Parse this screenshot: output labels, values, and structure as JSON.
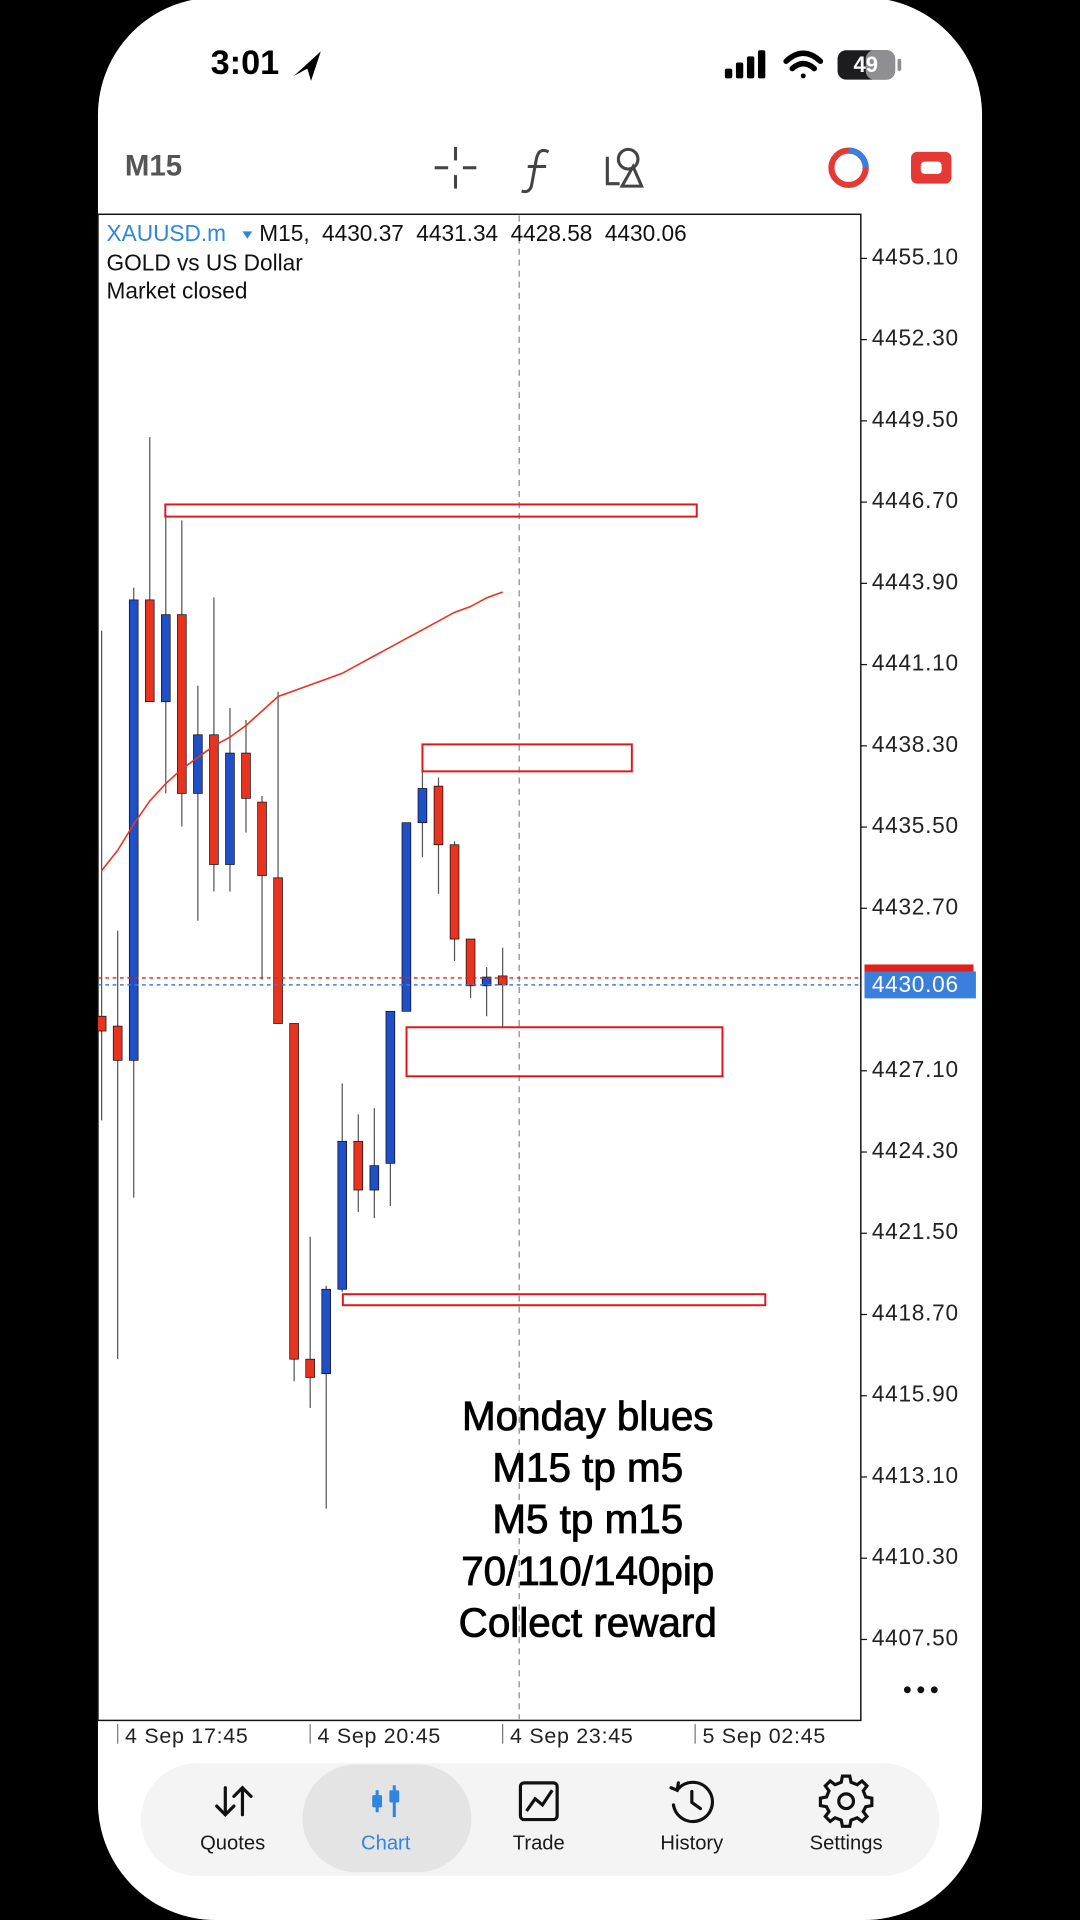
{
  "status_bar": {
    "time": "3:01",
    "battery": "49"
  },
  "toolbar": {
    "timeframe": "M15"
  },
  "chart_data": {
    "type": "candlestick",
    "symbol": "XAUUSD.m",
    "period_label": "M15,",
    "description": "GOLD vs US Dollar",
    "status": "Market closed",
    "up_color": "#1f50c8",
    "down_color": "#e8341f",
    "candles": [
      {
        "open": 4428.98,
        "high": 4442.27,
        "low": 4425.39,
        "close": 4428.47
      },
      {
        "open": 4428.64,
        "high": 4431.93,
        "low": 4417.16,
        "close": 4427.46
      },
      {
        "open": 4427.46,
        "high": 4443.75,
        "low": 4422.73,
        "close": 4443.33
      },
      {
        "open": 4443.33,
        "high": 4448.94,
        "low": 4439.82,
        "close": 4439.82
      },
      {
        "open": 4439.82,
        "high": 4446.28,
        "low": 4436.66,
        "close": 4442.82
      },
      {
        "open": 4442.82,
        "high": 4446.07,
        "low": 4435.52,
        "close": 4436.66
      },
      {
        "open": 4436.66,
        "high": 4440.37,
        "low": 4432.27,
        "close": 4438.68
      },
      {
        "open": 4438.68,
        "high": 4443.41,
        "low": 4433.28,
        "close": 4434.21
      },
      {
        "open": 4434.21,
        "high": 4439.61,
        "low": 4433.28,
        "close": 4438.05
      },
      {
        "open": 4438.05,
        "high": 4439.19,
        "low": 4435.31,
        "close": 4436.49
      },
      {
        "open": 4436.36,
        "high": 4436.57,
        "low": 4430.24,
        "close": 4433.83
      },
      {
        "open": 4433.75,
        "high": 4440.16,
        "low": 4428.73,
        "close": 4428.73
      },
      {
        "open": 4428.73,
        "high": 4428.73,
        "low": 4416.4,
        "close": 4417.16
      },
      {
        "open": 4417.16,
        "high": 4421.38,
        "low": 4415.48,
        "close": 4416.53
      },
      {
        "open": 4416.66,
        "high": 4419.69,
        "low": 4412.01,
        "close": 4419.57
      },
      {
        "open": 4419.57,
        "high": 4426.66,
        "low": 4419.48,
        "close": 4424.67
      },
      {
        "open": 4424.67,
        "high": 4425.6,
        "low": 4422.23,
        "close": 4422.99
      },
      {
        "open": 4422.99,
        "high": 4425.81,
        "low": 4422.02,
        "close": 4423.83
      },
      {
        "open": 4423.91,
        "high": 4429.15,
        "low": 4422.44,
        "close": 4429.15
      },
      {
        "open": 4429.15,
        "high": 4435.65,
        "low": 4429.15,
        "close": 4435.65
      },
      {
        "open": 4435.65,
        "high": 4437.42,
        "low": 4434.46,
        "close": 4436.83
      },
      {
        "open": 4436.91,
        "high": 4437.21,
        "low": 4433.2,
        "close": 4434.89
      },
      {
        "open": 4434.89,
        "high": 4435.01,
        "low": 4430.88,
        "close": 4431.64
      },
      {
        "open": 4431.64,
        "high": 4431.64,
        "low": 4429.61,
        "close": 4430.03
      },
      {
        "open": 4430.03,
        "high": 4430.67,
        "low": 4428.98,
        "close": 4430.33
      },
      {
        "open": 4430.37,
        "high": 4431.34,
        "low": 4428.58,
        "close": 4430.06
      }
    ],
    "moving_average": {
      "color": "#e8341f",
      "values": [
        4434.0,
        4434.7,
        4435.6,
        4436.4,
        4437.0,
        4437.5,
        4437.9,
        4438.3,
        4438.6,
        4439.0,
        4439.5,
        4440.0,
        4440.2,
        4440.4,
        4440.6,
        4440.8,
        4441.1,
        4441.4,
        4441.7,
        4442.0,
        4442.3,
        4442.6,
        4442.9,
        4443.1,
        4443.4,
        4443.6
      ]
    },
    "zone_color": "#e0161b",
    "zones": [
      {
        "top": 4446.62,
        "bottom": 4446.2
      },
      {
        "top": 4438.35,
        "bottom": 4437.42
      },
      {
        "top": 4428.6,
        "bottom": 4426.91
      },
      {
        "top": 4419.4,
        "bottom": 4419.02
      }
    ],
    "bid": 4430.06,
    "bid_color": "#3b7fdc",
    "ask": 4430.3,
    "ask_color": "#e0201b",
    "ylim": [
      4404.71,
      4456.62
    ],
    "yticks": [
      {
        "value": 4455.1,
        "label": "4455.10"
      },
      {
        "value": 4452.3,
        "label": "4452.30"
      },
      {
        "value": 4449.5,
        "label": "4449.50"
      },
      {
        "value": 4446.7,
        "label": "4446.70"
      },
      {
        "value": 4443.9,
        "label": "4443.90"
      },
      {
        "value": 4441.1,
        "label": "4441.10"
      },
      {
        "value": 4438.3,
        "label": "4438.30"
      },
      {
        "value": 4435.5,
        "label": "4435.50"
      },
      {
        "value": 4432.7,
        "label": "4432.70"
      },
      {
        "value": 4427.1,
        "label": "4427.10"
      },
      {
        "value": 4424.3,
        "label": "4424.30"
      },
      {
        "value": 4421.5,
        "label": "4421.50"
      },
      {
        "value": 4418.7,
        "label": "4418.70"
      },
      {
        "value": 4415.9,
        "label": "4415.90"
      },
      {
        "value": 4413.1,
        "label": "4413.10"
      },
      {
        "value": 4410.3,
        "label": "4410.30"
      },
      {
        "value": 4407.5,
        "label": "4407.50"
      }
    ],
    "time_labels": [
      "4 Sep 17:45",
      "4 Sep 20:45",
      "4 Sep 23:45",
      "5 Sep 02:45"
    ]
  },
  "overlay_text": [
    "Monday blues",
    "M15 tp m5",
    "M5 tp m15",
    "70/110/140pip",
    "Collect reward"
  ],
  "nav": {
    "tabs": [
      "Quotes",
      "Chart",
      "Trade",
      "History",
      "Settings"
    ],
    "active_color": "#2f86e0"
  }
}
